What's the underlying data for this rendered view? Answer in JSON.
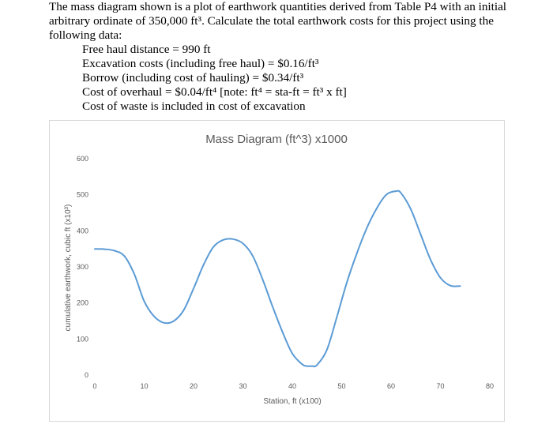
{
  "problem": {
    "intro_line1": "The mass diagram shown is a plot of earthwork quantities derived from Table P4 with an initial",
    "intro_line2": "arbitrary ordinate of 350,000 ft³. Calculate the total earthwork costs for this project using the",
    "intro_line3": "following data:",
    "given": [
      "Free haul distance = 990 ft",
      "Excavation costs (including free haul) = $0.16/ft³",
      "Borrow (including cost of hauling) = $0.34/ft³",
      "Cost of overhaul = $0.04/ft⁴  [note: ft⁴ = sta-ft = ft³ x ft]",
      "Cost of waste is included in cost of excavation"
    ]
  },
  "chart_data": {
    "type": "line",
    "title": "Mass Diagram (ft^3) x1000",
    "xlabel": "Station, ft (x100)",
    "ylabel": "cumulative earthwork, cubic ft (x10³)",
    "xlim": [
      0,
      80
    ],
    "ylim": [
      0,
      600
    ],
    "xticks": [
      "0",
      "10",
      "20",
      "30",
      "40",
      "50",
      "60",
      "70",
      "80"
    ],
    "yticks": [
      "0",
      "100",
      "200",
      "300",
      "400",
      "500",
      "600"
    ],
    "grid": false,
    "line_color": "#5b9bd5",
    "series": [
      {
        "x": [
          0,
          2,
          4,
          6,
          8,
          10,
          12,
          14,
          16,
          18,
          20,
          22,
          24,
          26,
          28,
          30,
          32,
          34,
          36,
          38,
          40,
          42,
          43,
          44,
          45,
          47,
          49,
          51,
          53,
          55,
          57,
          59,
          61,
          62,
          64,
          66,
          68,
          70,
          72,
          74
        ],
        "y": [
          350,
          349,
          345,
          330,
          280,
          205,
          163,
          145,
          150,
          180,
          240,
          305,
          355,
          375,
          377,
          365,
          330,
          265,
          190,
          120,
          60,
          30,
          25,
          25,
          28,
          70,
          160,
          255,
          335,
          405,
          460,
          500,
          510,
          505,
          460,
          390,
          320,
          270,
          248,
          247
        ]
      }
    ]
  }
}
